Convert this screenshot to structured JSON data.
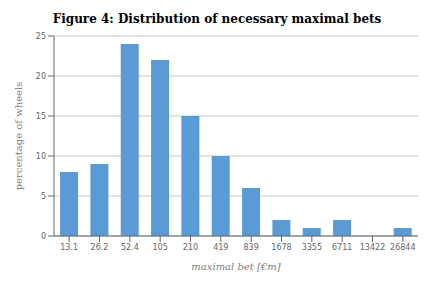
{
  "chart_data": {
    "type": "bar",
    "title": "Figure 4: Distribution of necessary maximal bets",
    "xlabel": "maximal bet [€m]",
    "ylabel": "percentage of wheels",
    "categories": [
      "13.1",
      "26.2",
      "52.4",
      "105",
      "210",
      "419",
      "839",
      "1678",
      "3355",
      "6711",
      "13422",
      "26844"
    ],
    "values": [
      8,
      9,
      24,
      22,
      15,
      10,
      6,
      2,
      1,
      2,
      0,
      1
    ],
    "color": "#5B9BD5",
    "ylim": [
      0,
      25
    ],
    "yticks": [
      0,
      5,
      10,
      15,
      20,
      25
    ],
    "grid": true
  }
}
